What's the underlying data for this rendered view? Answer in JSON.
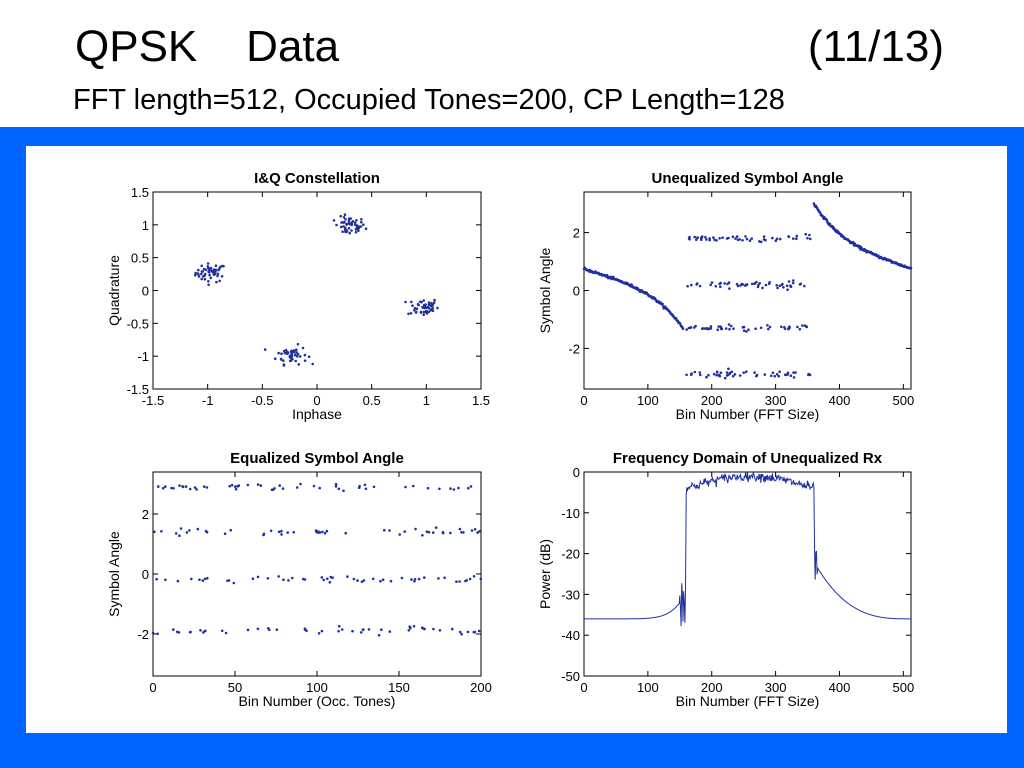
{
  "slide": {
    "title_left": "QPSK    Data",
    "title_right": "(11/13)",
    "subtitle": "FFT length=512, Occupied Tones=200, CP Length=128"
  },
  "colors": {
    "background_band": "#0066ff",
    "series": "#2030a0"
  },
  "chart_data": [
    {
      "type": "scatter",
      "title": "I&Q Constellation",
      "xlabel": "Inphase",
      "ylabel": "Quadrature",
      "xlim": [
        -1.5,
        1.5
      ],
      "ylim": [
        -1.5,
        1.5
      ],
      "xticks": [
        -1.5,
        -1,
        -0.5,
        0,
        0.5,
        1,
        1.5
      ],
      "yticks": [
        -1.5,
        -1,
        -0.5,
        0,
        0.5,
        1,
        1.5
      ],
      "clusters": [
        {
          "x": -0.97,
          "y": 0.27,
          "spread": 0.07
        },
        {
          "x": 0.3,
          "y": 0.98,
          "spread": 0.07
        },
        {
          "x": 0.97,
          "y": -0.25,
          "spread": 0.07
        },
        {
          "x": -0.23,
          "y": -0.98,
          "spread": 0.07
        }
      ]
    },
    {
      "type": "scatter",
      "title": "Unequalized Symbol Angle",
      "xlabel": "Bin Number (FFT Size)",
      "ylabel": "Symbol Angle",
      "xlim": [
        0,
        512
      ],
      "ylim": [
        -3.4,
        3.4
      ],
      "xticks": [
        0,
        100,
        200,
        300,
        400,
        500
      ],
      "yticks": [
        -2,
        0,
        2
      ],
      "guard_curve_left": {
        "x_start": 0,
        "x_end": 155,
        "y_start": 0.75,
        "y_end": -1.3
      },
      "guard_curve_right": {
        "x_start": 360,
        "x_end": 512,
        "y_start": 3.0,
        "y_end": 0.75
      },
      "occupied_bins": [
        155,
        360
      ],
      "levels": [
        -2.9,
        -1.3,
        0.2,
        1.8
      ]
    },
    {
      "type": "scatter",
      "title": "Equalized Symbol Angle",
      "xlabel": "Bin Number (Occ. Tones)",
      "ylabel": "Symbol Angle",
      "xlim": [
        0,
        200
      ],
      "ylim": [
        -3.4,
        3.4
      ],
      "xticks": [
        0,
        50,
        100,
        150,
        200
      ],
      "yticks": [
        -2,
        0,
        2
      ],
      "levels": [
        -1.9,
        -0.2,
        1.4,
        2.9
      ],
      "points_per_level": 50
    },
    {
      "type": "line",
      "title": "Frequency Domain of Unequalized Rx",
      "xlabel": "Bin Number (FFT Size)",
      "ylabel": "Power (dB)",
      "xlim": [
        0,
        512
      ],
      "ylim": [
        -50,
        0
      ],
      "xticks": [
        0,
        100,
        200,
        300,
        400,
        500
      ],
      "yticks": [
        -50,
        -40,
        -30,
        -20,
        -10,
        0
      ],
      "floor_db": -36,
      "passband_db": [
        -4,
        -1
      ],
      "band_edges": [
        160,
        360
      ]
    }
  ]
}
